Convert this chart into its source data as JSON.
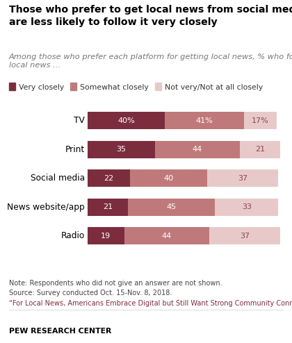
{
  "title": "Those who prefer to get local news from social media\nare less likely to follow it very closely",
  "subtitle": "Among those who prefer each platform for getting local news, % who follow\nlocal news ...",
  "categories": [
    "TV",
    "Print",
    "Social media",
    "News website/app",
    "Radio"
  ],
  "very_closely": [
    40,
    35,
    22,
    21,
    19
  ],
  "somewhat_closely": [
    41,
    44,
    40,
    45,
    44
  ],
  "not_very": [
    17,
    21,
    37,
    33,
    37
  ],
  "labels_very": [
    "40%",
    "35",
    "22",
    "21",
    "19"
  ],
  "labels_somewhat": [
    "41%",
    "44",
    "40",
    "45",
    "44"
  ],
  "labels_not": [
    "17%",
    "21",
    "37",
    "33",
    "37"
  ],
  "color_very": "#7b2d3e",
  "color_somewhat": "#c0797a",
  "color_not": "#e8c9c9",
  "legend_labels": [
    "Very closely",
    "Somewhat closely",
    "Not very/Not at all closely"
  ],
  "note_line1": "Note: Respondents who did not give an answer are not shown.",
  "note_line2": "Source: Survey conducted Oct. 15-Nov. 8, 2018.",
  "note_line3": "“For Local News, Americans Embrace Digital but Still Want Strong Community Connection”",
  "footer": "PEW RESEARCH CENTER",
  "background_color": "#ffffff"
}
